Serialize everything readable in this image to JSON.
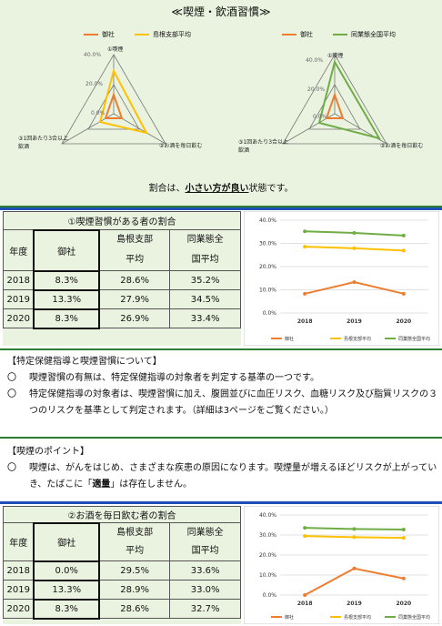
{
  "header": {
    "title": "≪喫煙・飲酒習慣≫",
    "ratio_note_pre": "割合は、",
    "ratio_note_bold": "小さい方が良い",
    "ratio_note_post": "状態です。"
  },
  "radar_left": {
    "legend": [
      "御社",
      "島根支部平均"
    ],
    "axes": [
      "①喫煙",
      "②お酒を毎日飲む",
      "③1回あたり3合以上飲酒"
    ],
    "ticks": [
      "40.0%",
      "20.0%",
      "0.0%"
    ]
  },
  "radar_right": {
    "legend": [
      "御社",
      "同業態全国平均"
    ],
    "axes": [
      "①喫煙",
      "②お酒を毎日飲む",
      "③1回あたり3合以上飲酒"
    ],
    "ticks": [
      "40.0%",
      "20.0%",
      "0.0%"
    ]
  },
  "table1": {
    "title": "①喫煙習慣がある者の割合",
    "headers": [
      "年度",
      "御社",
      "島根支部平均",
      "同業態全国平均"
    ],
    "rows": [
      [
        "2018",
        "8.3%",
        "28.6%",
        "35.2%"
      ],
      [
        "2019",
        "13.3%",
        "27.9%",
        "34.5%"
      ],
      [
        "2020",
        "8.3%",
        "26.9%",
        "33.4%"
      ]
    ]
  },
  "table2": {
    "title": "②お酒を毎日飲む者の割合",
    "headers": [
      "年度",
      "御社",
      "島根支部平均",
      "同業態全国平均"
    ],
    "rows": [
      [
        "2018",
        "0.0%",
        "29.5%",
        "33.6%"
      ],
      [
        "2019",
        "13.3%",
        "28.9%",
        "33.0%"
      ],
      [
        "2020",
        "8.3%",
        "28.6%",
        "32.7%"
      ]
    ]
  },
  "info1": {
    "heading": "【特定保健指導と喫煙習慣について】",
    "bullet": "〇",
    "items": [
      "喫煙習慣の有無は、特定保健指導の対象者を判定する基準の一つです。",
      "特定保健指導の対象者は、喫煙習慣に加え、腹囲並びに血圧リスク、血糖リスク及び脂質リスクの３つのリスクを基準として判定されます。（詳細は3ページをご覧ください。）"
    ]
  },
  "info2": {
    "heading": "【喫煙のポイント】",
    "bullet": "〇",
    "text_pre": "喫煙は、がんをはじめ、さまざまな疾患の原因になります。喫煙量が増えるほどリスクが上がっていき、たばこに「",
    "text_bold": "適量",
    "text_post": "」は存在しません。"
  },
  "colors": {
    "company": "#ed7d31",
    "shimane": "#ffc000",
    "national": "#70ad47",
    "green": "#2e7d32"
  },
  "chart_data": [
    {
      "type": "line",
      "x": [
        "2018",
        "2019",
        "2020"
      ],
      "ylim": [
        0,
        40
      ],
      "yticks": [
        "0.0%",
        "10.0%",
        "20.0%",
        "30.0%",
        "40.0%"
      ],
      "series": [
        {
          "name": "御社",
          "values": [
            8.3,
            13.3,
            8.3
          ]
        },
        {
          "name": "島根支部平均",
          "values": [
            28.6,
            27.9,
            26.9
          ]
        },
        {
          "name": "同業態全国平均",
          "values": [
            35.2,
            34.5,
            33.4
          ]
        }
      ]
    },
    {
      "type": "line",
      "x": [
        "2018",
        "2019",
        "2020"
      ],
      "ylim": [
        0,
        40
      ],
      "yticks": [
        "0.0%",
        "10.0%",
        "20.0%",
        "30.0%",
        "40.0%"
      ],
      "series": [
        {
          "name": "御社",
          "values": [
            0.0,
            13.3,
            8.3
          ]
        },
        {
          "name": "島根支部平均",
          "values": [
            29.5,
            28.9,
            28.6
          ]
        },
        {
          "name": "同業態全国平均",
          "values": [
            33.6,
            33.0,
            32.7
          ]
        }
      ]
    }
  ]
}
